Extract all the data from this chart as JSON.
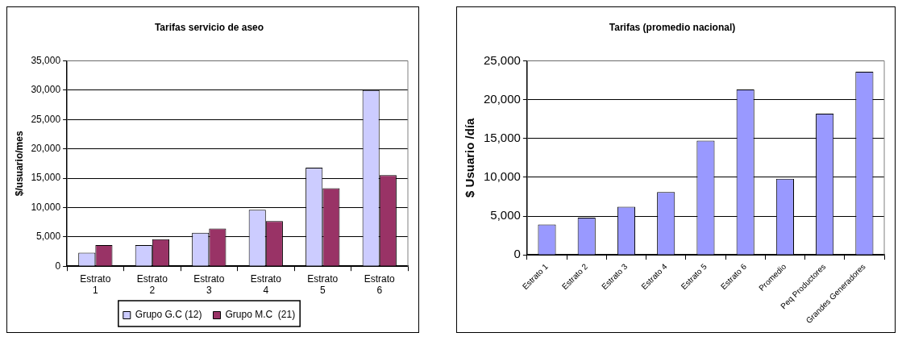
{
  "chart_data": [
    {
      "type": "bar",
      "title": "Tarifas servicio de aseo",
      "ylabel": "$/usuario/mes",
      "categories": [
        "Estrato 1",
        "Estrato 2",
        "Estrato 3",
        "Estrato 4",
        "Estrato 5",
        "Estrato 6"
      ],
      "series": [
        {
          "name": "Grupo G.C (12)",
          "color": "#ccccff",
          "values": [
            2300,
            3600,
            5700,
            9600,
            16800,
            30000
          ]
        },
        {
          "name": "Grupo M.C  (21)",
          "color": "#993366",
          "values": [
            3600,
            4600,
            6400,
            7700,
            13300,
            15500
          ]
        }
      ],
      "ylim": [
        0,
        35000
      ],
      "yticks": [
        {
          "value": 0,
          "label": "0"
        },
        {
          "value": 5000,
          "label": "5,000"
        },
        {
          "value": 10000,
          "label": "10,000"
        },
        {
          "value": 15000,
          "label": "15,000"
        },
        {
          "value": 20000,
          "label": "20,000"
        },
        {
          "value": 25000,
          "label": "25,000"
        },
        {
          "value": 30000,
          "label": "30,000"
        },
        {
          "value": 35000,
          "label": "35,000"
        }
      ],
      "grid": "y",
      "legend": "bottom"
    },
    {
      "type": "bar",
      "title": "Tarifas (promedio nacional)",
      "ylabel": "$ Usuario /día",
      "categories": [
        "Estrato 1",
        "Estrato 2",
        "Estrato 3",
        "Estrato 4",
        "Estrato 5",
        "Estrato 6",
        "Promedio",
        "Peq Productores",
        "Grandes Generadores"
      ],
      "values": [
        3900,
        4800,
        6200,
        8100,
        14700,
        21300,
        9800,
        18200,
        23600
      ],
      "color": "#9999ff",
      "ylim": [
        0,
        25000
      ],
      "yticks": [
        {
          "value": 0,
          "label": "0"
        },
        {
          "value": 5000,
          "label": "5,000"
        },
        {
          "value": 10000,
          "label": "10,000"
        },
        {
          "value": 15000,
          "label": "15,000"
        },
        {
          "value": 20000,
          "label": "20,000"
        },
        {
          "value": 25000,
          "label": "25,000"
        }
      ],
      "grid": "y"
    }
  ]
}
